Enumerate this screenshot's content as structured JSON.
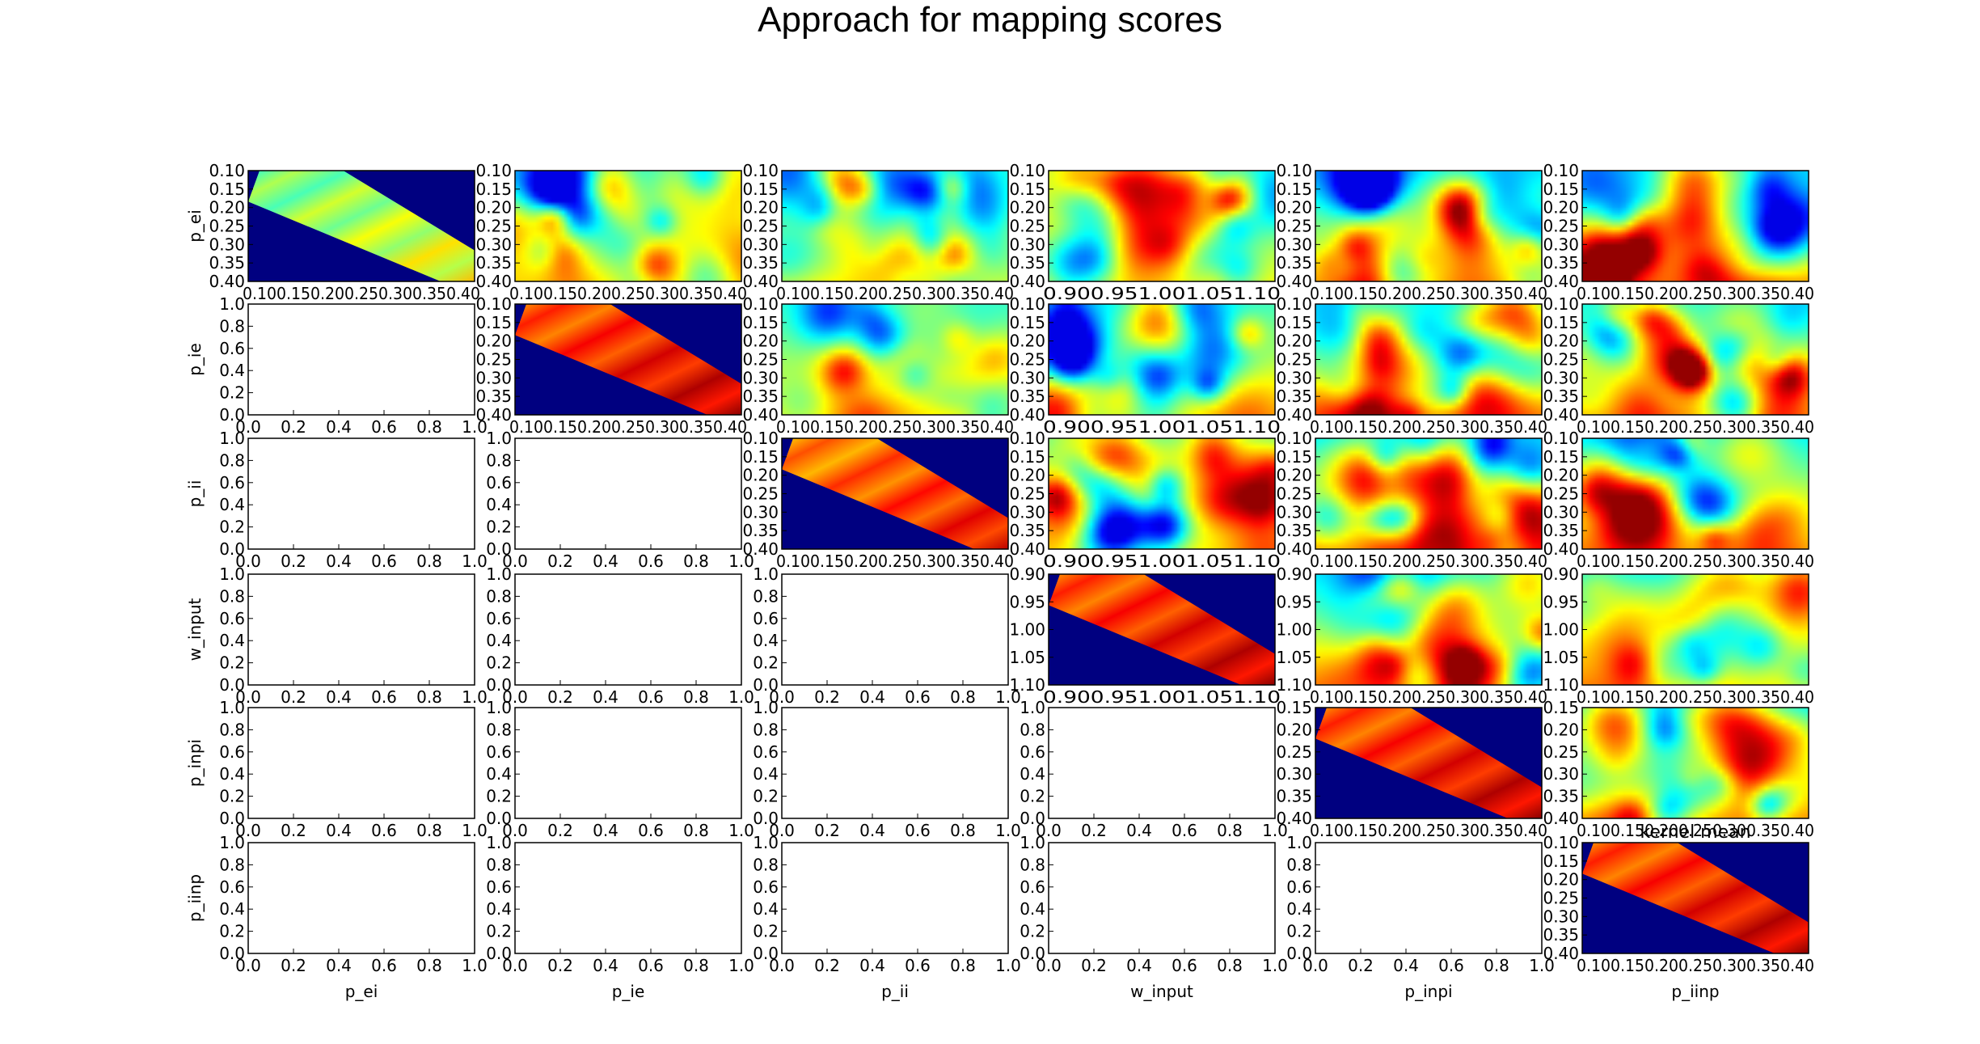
{
  "title": "Approach for mapping scores",
  "chart_data": {
    "type": "heatmap",
    "layout": "upper-triangular pairwise grid",
    "colormap": "jet",
    "parameters": [
      {
        "name": "p_ei",
        "ticks": [
          "0.10",
          "0.15",
          "0.20",
          "0.25",
          "0.30",
          "0.35",
          "0.40"
        ],
        "xticks": "0.100.150.200.250.300.350.40"
      },
      {
        "name": "p_ie",
        "ticks": [
          "0.10",
          "0.15",
          "0.20",
          "0.25",
          "0.30",
          "0.35",
          "0.40"
        ],
        "xticks": "0.100.150.200.250.300.350.40"
      },
      {
        "name": "p_ii",
        "ticks": [
          "0.10",
          "0.15",
          "0.20",
          "0.25",
          "0.30",
          "0.35",
          "0.40"
        ],
        "xticks": "0.100.150.200.250.300.350.40"
      },
      {
        "name": "w_input",
        "ticks": [
          "0.90",
          "0.95",
          "1.00",
          "1.05",
          "1.10"
        ],
        "xticks": "0.900.951.001.051.10"
      },
      {
        "name": "p_inpi",
        "ticks": [
          "0.15",
          "0.20",
          "0.25",
          "0.30",
          "0.35",
          "0.40"
        ],
        "xticks": "0.100.150.200.250.300.350.40"
      },
      {
        "name": "p_iinp",
        "ticks": [
          "0.10",
          "0.15",
          "0.20",
          "0.25",
          "0.30",
          "0.35",
          "0.40"
        ],
        "xticks": "0.100.150.200.250.300.350.40"
      }
    ],
    "row_labels": [
      "p_ei",
      "p_ie",
      "p_ii",
      "w_input",
      "p_inpi",
      "p_iinp"
    ],
    "col_labels": [
      "p_ei",
      "p_ie",
      "p_ii",
      "w_input",
      "p_inpi",
      "p_iinp"
    ],
    "empty_axis_ticks": [
      "0.0",
      "0.2",
      "0.4",
      "0.6",
      "0.8",
      "1.0"
    ],
    "empty_axis_range": [
      0,
      1
    ],
    "diagonal_band_levels": [
      0.55,
      0.85,
      0.8,
      0.85,
      0.85,
      0.85
    ],
    "diagonal_panel_annotation": "kernel mean",
    "grid": false
  }
}
